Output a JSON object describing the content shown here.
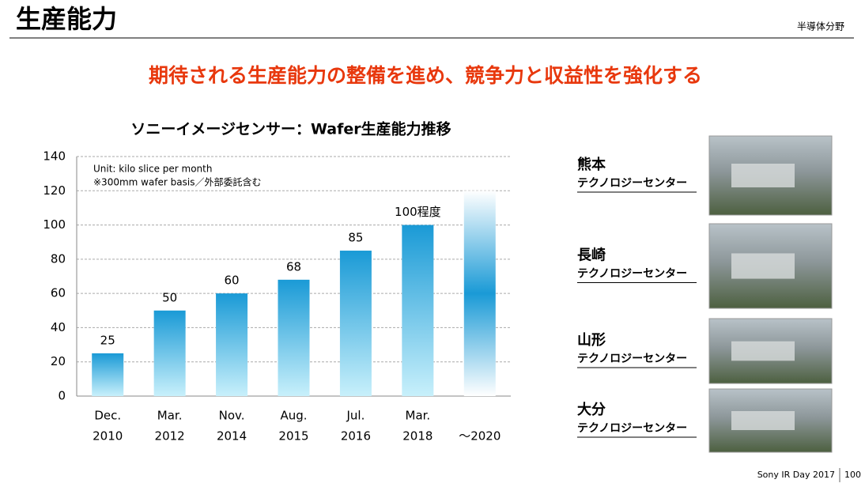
{
  "header": {
    "title": "生産能力",
    "section": "半導体分野"
  },
  "headline": "期待される生産能力の整備を進め、競争力と収益性を強化する",
  "chart_data": {
    "type": "bar",
    "title": "ソニーイメージセンサー：Wafer生産能力推移",
    "notes": [
      "Unit: kilo slice per month",
      "※300mm wafer basis／外部委託含む"
    ],
    "categories": [
      [
        "Dec.",
        "2010"
      ],
      [
        "Mar.",
        "2012"
      ],
      [
        "Nov.",
        "2014"
      ],
      [
        "Aug.",
        "2015"
      ],
      [
        "Jul.",
        "2016"
      ],
      [
        "Mar.",
        "2018"
      ],
      [
        "～2020"
      ]
    ],
    "values": [
      25,
      50,
      60,
      68,
      85,
      100,
      120
    ],
    "value_labels": [
      "25",
      "50",
      "60",
      "68",
      "85",
      "100程度",
      null
    ],
    "color": "#1a9ad6",
    "ylim": [
      0,
      140
    ],
    "yticks": [
      0,
      20,
      40,
      60,
      80,
      100,
      120,
      140
    ],
    "grid": true
  },
  "sites": [
    {
      "name": "熊本",
      "label": "テクノロジーセンター"
    },
    {
      "name": "長崎",
      "label": "テクノロジーセンター"
    },
    {
      "name": "山形",
      "label": "テクノロジーセンター"
    },
    {
      "name": "大分",
      "label": "テクノロジーセンター"
    }
  ],
  "footer": {
    "event": "Sony IR Day 2017",
    "page": "100"
  }
}
